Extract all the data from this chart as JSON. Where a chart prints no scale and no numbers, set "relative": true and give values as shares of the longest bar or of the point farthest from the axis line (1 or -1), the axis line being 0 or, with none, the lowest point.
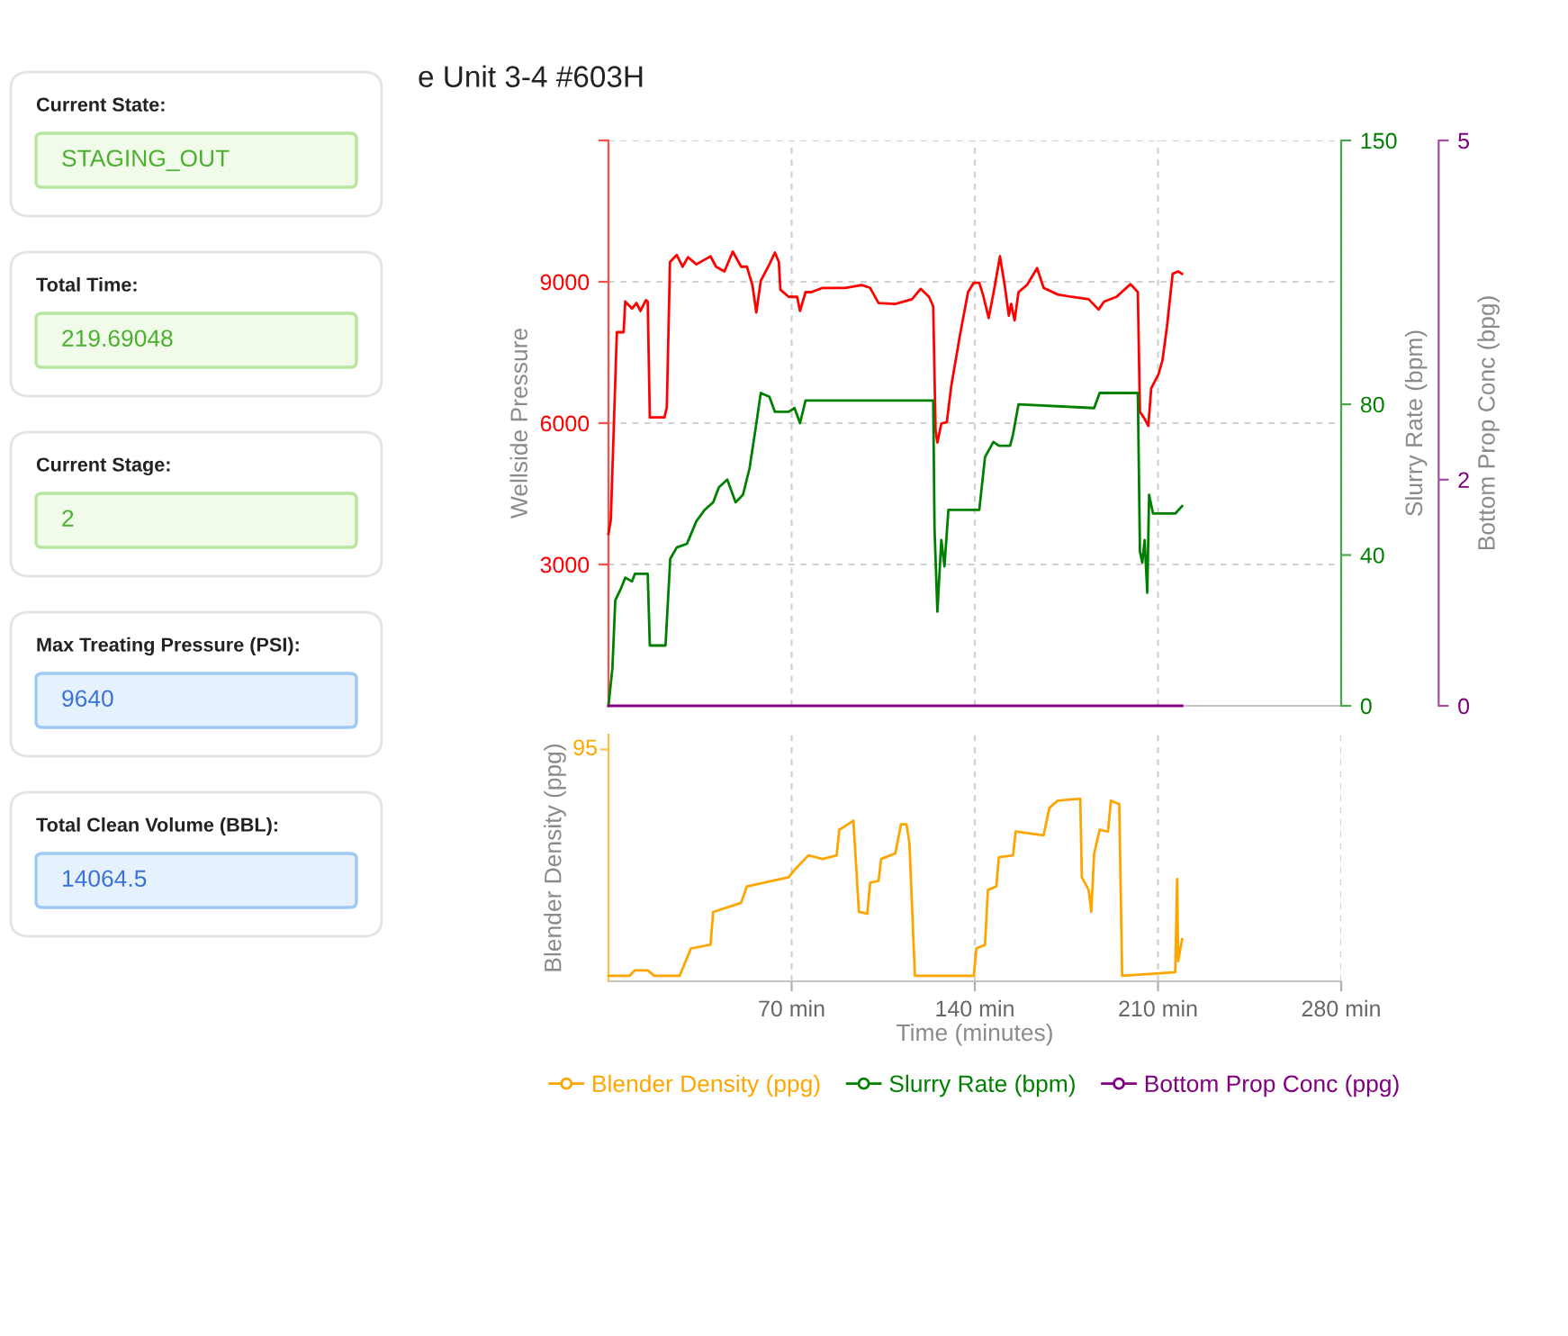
{
  "chart_data": [
    {
      "type": "line",
      "title": "e Unit 3-4 #603H",
      "ylabel": "Wellside Pressure",
      "y2label": "Slurry Rate (bpm)",
      "y3label": "Bottom Prop Conc (bpg)",
      "xlim": [
        0,
        280
      ],
      "xticks": [
        {
          "value": 70,
          "label": null
        },
        {
          "value": 140,
          "label": null
        },
        {
          "value": 210,
          "label": null
        },
        {
          "value": 280,
          "label": null
        }
      ],
      "tick_labels": "y",
      "ylim": [
        0,
        12000
      ],
      "yticks": [
        3000,
        6000,
        9000,
        {
          "value": 12000,
          "label": null
        }
      ],
      "y2lim": [
        0,
        150
      ],
      "y2ticks": [
        0,
        40,
        80,
        150
      ],
      "y3lim": [
        0,
        5
      ],
      "y3ticks": [
        0,
        2,
        5
      ],
      "grid": true,
      "legend": "bottom",
      "series": [
        {
          "color": "#ff0000",
          "axis": "y",
          "x": [
            0,
            0.9,
            3.2,
            5.8,
            6.4,
            9,
            10.7,
            12.2,
            14.3,
            15,
            15.8,
            21.4,
            22.3,
            23.5,
            26.1,
            28.3,
            30.4,
            33.6,
            36.8,
            39,
            41.1,
            44.3,
            47.5,
            50.7,
            52.9,
            55,
            56.5,
            58.2,
            61.5,
            63.6,
            65.1,
            65.7,
            68.9,
            72.1,
            73.2,
            75.3,
            77.5,
            81.8,
            90.4,
            96.8,
            100,
            103.2,
            109.6,
            116,
            119.3,
            122.5,
            124.1,
            125,
            125.7,
            127.2,
            129.3,
            131,
            134.2,
            137.4,
            139.6,
            141.7,
            143.2,
            145.3,
            147.5,
            149.6,
            151.4,
            153,
            153.9,
            155.2,
            156.7,
            159.9,
            163.8,
            166.3,
            171.7,
            177,
            183.5,
            187.3,
            189.4,
            194.1,
            199.5,
            202.3,
            203.1,
            204.9,
            206.3,
            207.4,
            210.2,
            211.7,
            213.4,
            215.6,
            217.7,
            219.2
          ],
          "values": [
            3650,
            3950,
            7930,
            7930,
            8580,
            8430,
            8550,
            8380,
            8610,
            8580,
            6120,
            6120,
            6340,
            9420,
            9570,
            9320,
            9520,
            9370,
            9470,
            9540,
            9320,
            9220,
            9640,
            9320,
            9320,
            8930,
            8350,
            9020,
            9370,
            9620,
            9420,
            8830,
            8680,
            8680,
            8380,
            8780,
            8780,
            8870,
            8870,
            8930,
            8870,
            8550,
            8530,
            8630,
            8850,
            8680,
            8480,
            5840,
            5590,
            5990,
            6020,
            6790,
            7830,
            8780,
            8980,
            8980,
            8710,
            8230,
            8870,
            9540,
            8930,
            8280,
            8530,
            8180,
            8780,
            8930,
            9290,
            8870,
            8730,
            8680,
            8630,
            8410,
            8580,
            8680,
            8950,
            8780,
            6240,
            6090,
            5940,
            6740,
            7040,
            7330,
            8030,
            9170,
            9220,
            9170
          ]
        },
        {
          "name": "Slurry Rate (bpm)",
          "color": "#008000",
          "axis": "y2",
          "x": [
            0,
            1.5,
            2.6,
            4.7,
            6.4,
            9,
            10.1,
            15,
            15.8,
            21.8,
            23.6,
            26.1,
            30,
            33.6,
            36.8,
            40,
            42.2,
            45.4,
            48.6,
            51.4,
            53.9,
            56.1,
            58.2,
            61.5,
            63.6,
            68.9,
            71.1,
            73.2,
            75.3,
            124.1,
            124.6,
            125.7,
            127.2,
            128.4,
            129.9,
            141.7,
            143.9,
            147.1,
            149.2,
            153.5,
            154.6,
            156.7,
            185.6,
            187.7,
            202.3,
            203.1,
            204,
            204.9,
            205.9,
            206.6,
            208.1,
            216.6,
            219.2
          ],
          "values": [
            0,
            10,
            28,
            31,
            34,
            33,
            35,
            35,
            16,
            16,
            39,
            42,
            43,
            49,
            52,
            54,
            58,
            60,
            54,
            56,
            63,
            73,
            83,
            82,
            78,
            78,
            79,
            75,
            81,
            81,
            47,
            25,
            44,
            37,
            52,
            52,
            66,
            70,
            69,
            69,
            72,
            80,
            79,
            83,
            83,
            41,
            38,
            44,
            30,
            56,
            51,
            51,
            53
          ]
        },
        {
          "name": "Bottom Prop Conc (ppg)",
          "color": "#800080",
          "axis": "y3",
          "x": [
            0,
            219.2
          ],
          "values": [
            0,
            0
          ]
        }
      ],
      "annotations": [
        "Current State:",
        "STAGING_OUT",
        "Total Time:",
        "219.69048",
        "Current Stage:",
        "2",
        "Max Treating Pressure (PSI):",
        "9640",
        "Total Clean Volume (BBL):",
        "14064.5"
      ]
    },
    {
      "type": "line",
      "relative": true,
      "xlabel": "Time (minutes)",
      "ylabel": "Blender Density (ppg)",
      "xlim": [
        0,
        280
      ],
      "xticks": [
        {
          "value": 70,
          "label": "70 min"
        },
        {
          "value": 140,
          "label": "140 min"
        },
        {
          "value": 210,
          "label": "210 min"
        },
        {
          "value": 280,
          "label": "280 min"
        }
      ],
      "grid": "x",
      "legend": "bottom",
      "series": [
        {
          "name": "Blender Density (ppg)",
          "color": "#ffa500",
          "x": [
            0,
            8,
            10.1,
            15,
            17.5,
            27.2,
            31.5,
            39,
            40,
            50.7,
            52.9,
            68.9,
            71.1,
            76.4,
            81.8,
            87.2,
            88.2,
            93.6,
            95.7,
            98.9,
            100,
            103.2,
            104.2,
            109.6,
            111.8,
            113.9,
            115,
            117.1,
            139.6,
            140.6,
            143.9,
            145,
            148.2,
            149.2,
            154.6,
            155.6,
            166.3,
            168.5,
            171.7,
            180.3,
            180.9,
            183.5,
            184.5,
            185.6,
            187.7,
            190.9,
            192,
            195.2,
            196.3,
            216.6,
            217.3,
            217.7,
            219.2
          ],
          "values": [
            0.03,
            0.03,
            0.06,
            0.06,
            0.03,
            0.03,
            0.18,
            0.2,
            0.38,
            0.43,
            0.52,
            0.57,
            0.61,
            0.69,
            0.67,
            0.69,
            0.83,
            0.88,
            0.38,
            0.37,
            0.54,
            0.55,
            0.67,
            0.7,
            0.86,
            0.86,
            0.76,
            0.03,
            0.03,
            0.18,
            0.2,
            0.5,
            0.52,
            0.68,
            0.69,
            0.82,
            0.8,
            0.95,
            0.99,
            1,
            0.57,
            0.5,
            0.38,
            0.7,
            0.83,
            0.82,
            0.99,
            0.97,
            0.03,
            0.05,
            0.56,
            0.11,
            0.23
          ]
        }
      ],
      "annotations": [
        "95"
      ]
    }
  ]
}
